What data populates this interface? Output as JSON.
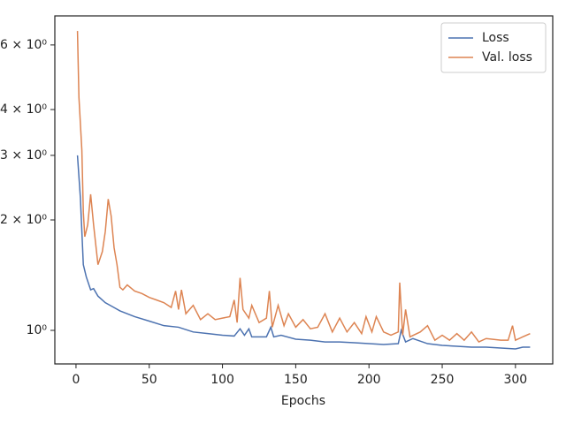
{
  "chart_data": {
    "type": "line",
    "xlabel": "Epochs",
    "xlim": [
      -14.45,
      325.45
    ],
    "xticks": [
      0,
      50,
      100,
      150,
      200,
      250,
      300
    ],
    "ylim": [
      0.81,
      7.2
    ],
    "ylog": true,
    "yticks": [
      {
        "value": 1,
        "label": "10⁰"
      },
      {
        "value": 2,
        "label": "2 × 10⁰"
      },
      {
        "value": 3,
        "label": "3 × 10⁰"
      },
      {
        "value": 4,
        "label": "4 × 10⁰"
      },
      {
        "value": 6,
        "label": "6 × 10⁰"
      }
    ],
    "legend": "upper right",
    "series": [
      {
        "name": "Loss",
        "color": "#4c72b0",
        "x": [
          1,
          3,
          5,
          7,
          10,
          12,
          15,
          20,
          25,
          30,
          40,
          50,
          60,
          70,
          80,
          90,
          100,
          108,
          112,
          115,
          118,
          120,
          130,
          133,
          135,
          140,
          150,
          160,
          170,
          180,
          190,
          200,
          210,
          220,
          222,
          225,
          230,
          240,
          250,
          260,
          270,
          280,
          290,
          300,
          305,
          310
        ],
        "values": [
          3.0,
          2.3,
          1.51,
          1.4,
          1.29,
          1.3,
          1.24,
          1.19,
          1.16,
          1.13,
          1.09,
          1.06,
          1.03,
          1.02,
          0.99,
          0.98,
          0.97,
          0.965,
          1.01,
          0.97,
          1.01,
          0.96,
          0.96,
          1.02,
          0.96,
          0.97,
          0.946,
          0.94,
          0.93,
          0.93,
          0.925,
          0.92,
          0.915,
          0.92,
          1.0,
          0.93,
          0.95,
          0.92,
          0.91,
          0.905,
          0.9,
          0.9,
          0.895,
          0.89,
          0.9,
          0.9
        ]
      },
      {
        "name": "Val. loss",
        "color": "#dd8452",
        "x": [
          1,
          2,
          4,
          5,
          6,
          8,
          10,
          12,
          15,
          18,
          20,
          22,
          24,
          26,
          28,
          30,
          32,
          35,
          40,
          45,
          50,
          55,
          60,
          65,
          68,
          70,
          72,
          75,
          80,
          85,
          90,
          95,
          100,
          105,
          108,
          110,
          112,
          114,
          118,
          120,
          125,
          130,
          132,
          134,
          138,
          142,
          145,
          150,
          155,
          160,
          165,
          170,
          175,
          180,
          185,
          190,
          195,
          198,
          202,
          205,
          210,
          215,
          220,
          221,
          223,
          225,
          228,
          235,
          240,
          245,
          250,
          255,
          260,
          265,
          270,
          275,
          280,
          290,
          295,
          298,
          300,
          305,
          310
        ],
        "values": [
          6.55,
          4.32,
          3.1,
          2.1,
          1.8,
          1.94,
          2.35,
          1.94,
          1.51,
          1.64,
          1.86,
          2.28,
          2.05,
          1.68,
          1.51,
          1.31,
          1.29,
          1.33,
          1.28,
          1.26,
          1.23,
          1.21,
          1.19,
          1.155,
          1.28,
          1.14,
          1.29,
          1.11,
          1.17,
          1.07,
          1.11,
          1.07,
          1.08,
          1.09,
          1.21,
          1.05,
          1.39,
          1.14,
          1.08,
          1.17,
          1.05,
          1.08,
          1.28,
          1.02,
          1.17,
          1.03,
          1.11,
          1.02,
          1.07,
          1.01,
          1.02,
          1.11,
          0.99,
          1.08,
          0.99,
          1.05,
          0.98,
          1.09,
          0.99,
          1.09,
          0.99,
          0.97,
          0.99,
          1.35,
          0.97,
          1.14,
          0.96,
          0.99,
          1.03,
          0.94,
          0.97,
          0.94,
          0.98,
          0.94,
          0.99,
          0.93,
          0.95,
          0.94,
          0.94,
          1.03,
          0.94,
          0.96,
          0.98
        ]
      }
    ]
  }
}
